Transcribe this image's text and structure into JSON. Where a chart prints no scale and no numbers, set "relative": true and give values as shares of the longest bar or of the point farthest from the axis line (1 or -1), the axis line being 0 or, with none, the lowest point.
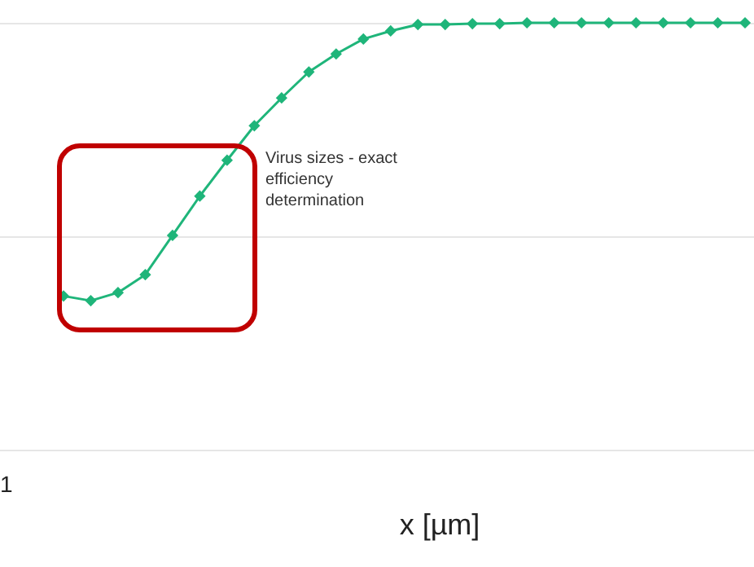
{
  "chart_data": {
    "type": "line",
    "relative": true,
    "xlabel": "x [µm]",
    "categories": [
      null,
      null,
      null,
      null,
      null,
      null,
      null,
      null,
      null,
      null,
      null,
      null,
      null,
      null,
      null,
      null,
      null,
      null,
      null,
      null,
      null,
      null,
      null,
      null,
      null,
      null
    ],
    "series": [
      {
        "color": "#1fb57a",
        "values": [
          0.36,
          0.349,
          0.368,
          0.41,
          0.502,
          0.594,
          0.678,
          0.759,
          0.824,
          0.885,
          0.927,
          0.962,
          0.981,
          0.996,
          0.996,
          0.998,
          0.998,
          1,
          1,
          1,
          1,
          1,
          1,
          1,
          1,
          1
        ]
      }
    ],
    "marker": "diamond",
    "legend": false,
    "ref_lines": [
      {
        "axis": "y",
        "value": 1,
        "color": "#e6e6e6"
      },
      {
        "axis": "y",
        "value": 0.5,
        "color": "#e6e6e6"
      },
      {
        "axis": "y",
        "value": 0,
        "color": "#e6e6e6"
      }
    ],
    "annotations": [
      "Virus sizes - exact efficiency determination",
      "1"
    ]
  }
}
